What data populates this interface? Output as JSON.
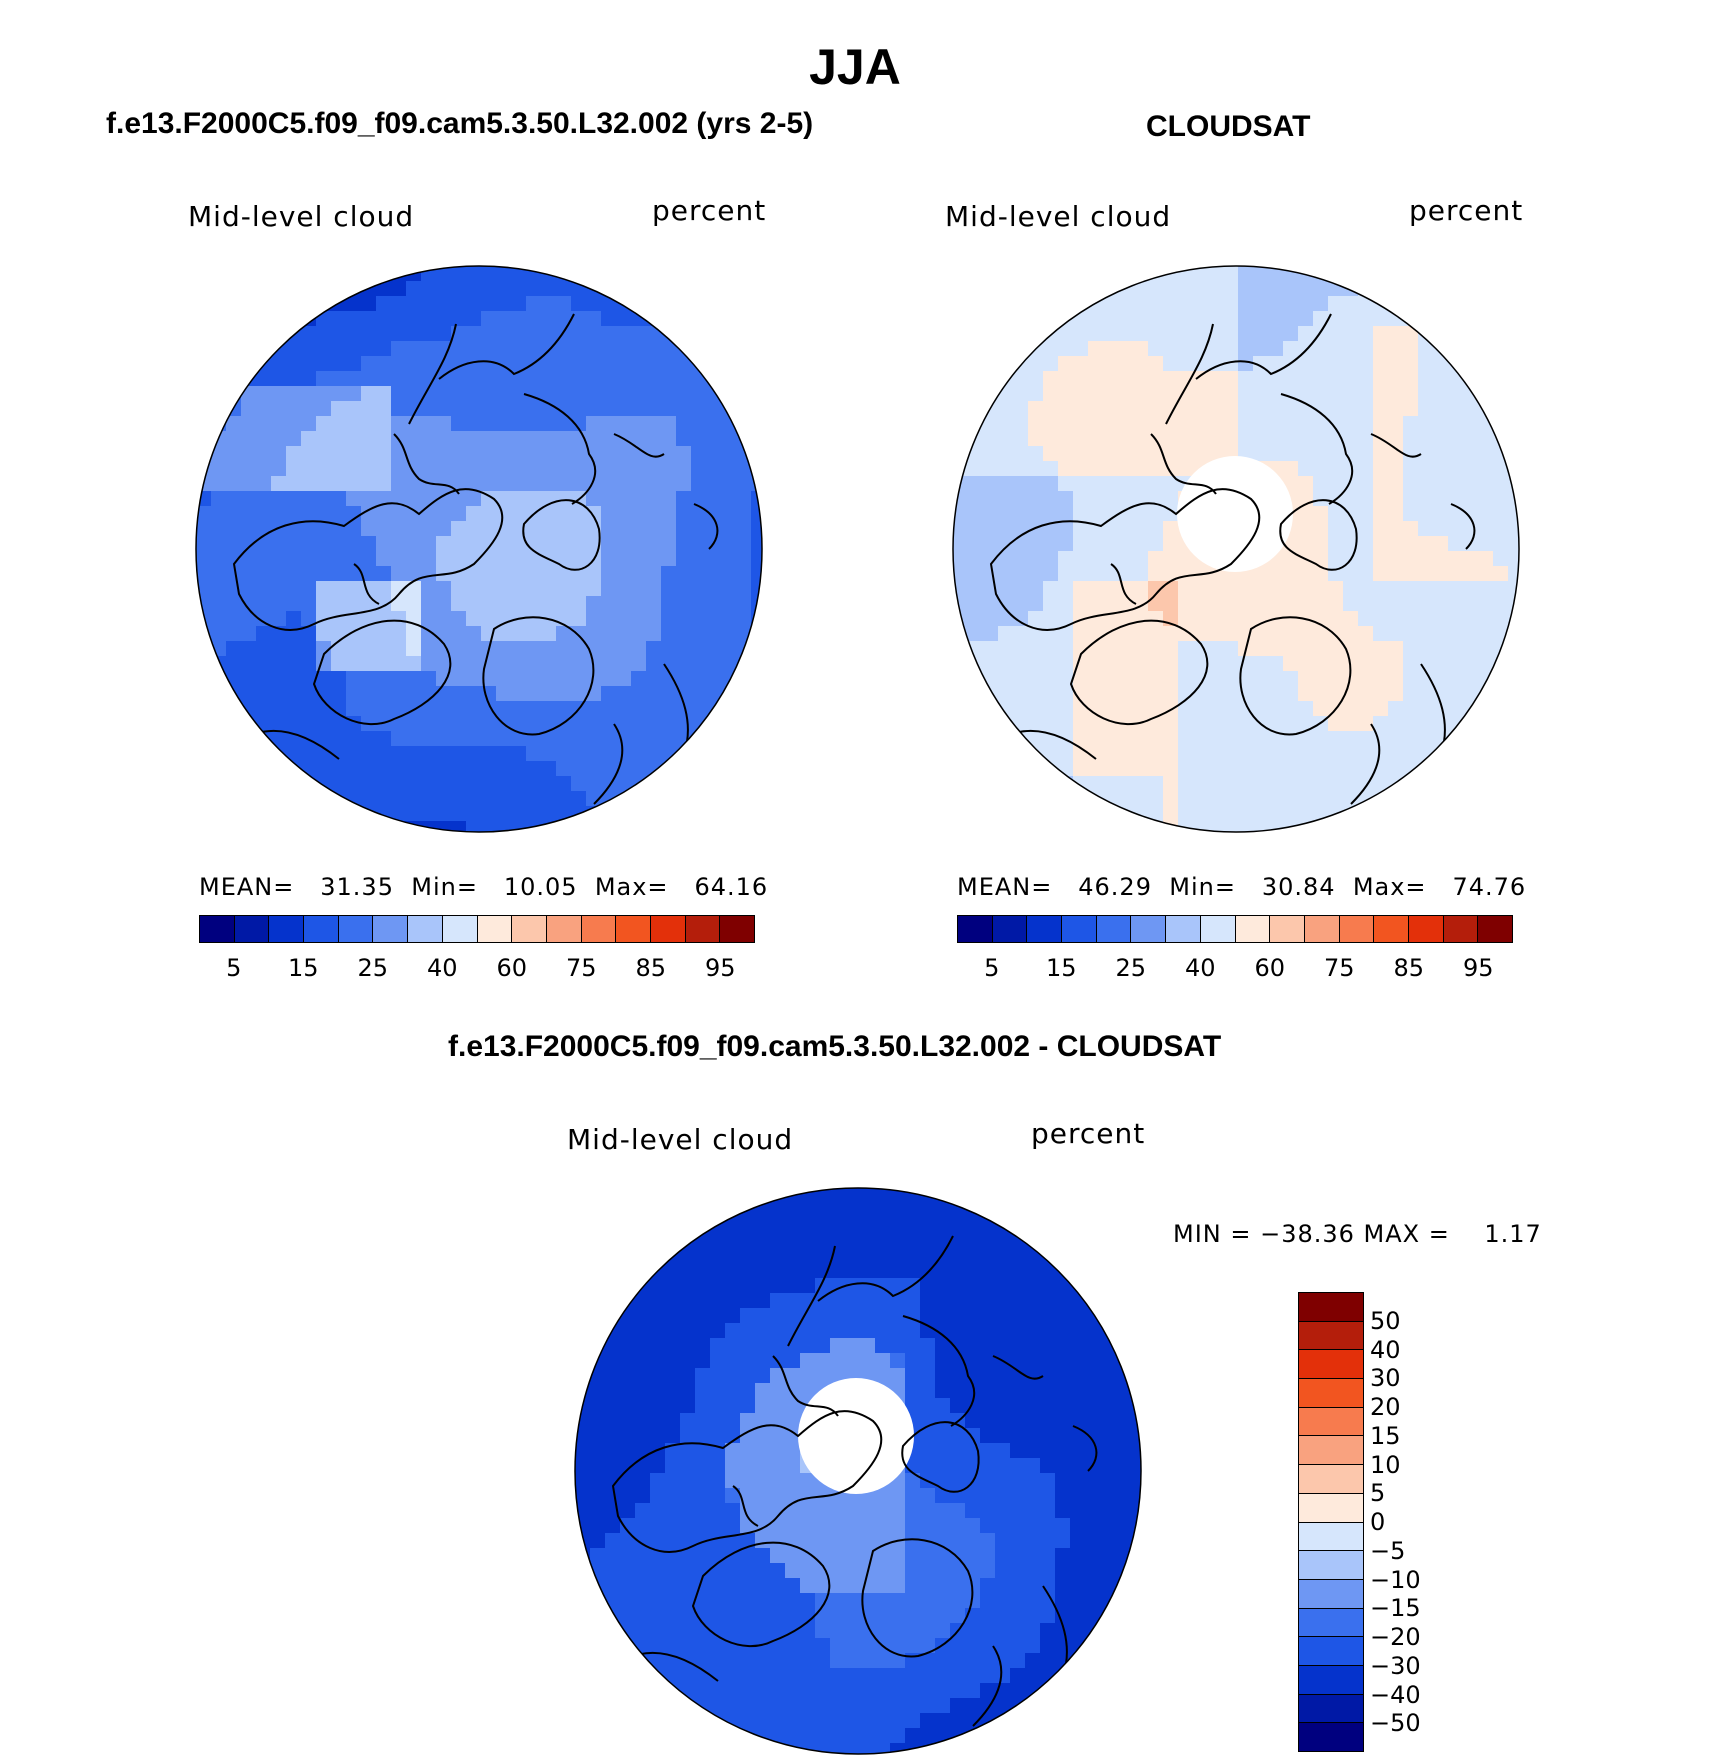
{
  "figure": {
    "title": "JJA"
  },
  "chart_data": [
    {
      "type": "heatmap",
      "projection": "north-polar-stereographic",
      "title": "f.e13.F2000C5.f09_f09.cam5.3.50.L32.002 (yrs 2-5)",
      "variable_label": "Mid-level cloud",
      "units_label": "percent",
      "stats": {
        "mean_label": "MEAN=",
        "mean": "31.35",
        "min_label": "Min=",
        "min": "10.05",
        "max_label": "Max=",
        "max": "64.16"
      },
      "colorbar": {
        "orientation": "horizontal",
        "levels": [
          "5",
          "10",
          "15",
          "20",
          "25",
          "30",
          "40",
          "50",
          "60",
          "70",
          "75",
          "80",
          "85",
          "90",
          "95"
        ],
        "tick_labels": [
          "5",
          "15",
          "25",
          "40",
          "60",
          "75",
          "85",
          "95"
        ]
      },
      "dominant_range": [
        15,
        40
      ]
    },
    {
      "type": "heatmap",
      "projection": "north-polar-stereographic",
      "title": "CLOUDSAT",
      "variable_label": "Mid-level cloud",
      "units_label": "percent",
      "stats": {
        "mean_label": "MEAN=",
        "mean": "46.29",
        "min_label": "Min=",
        "min": "30.84",
        "max_label": "Max=",
        "max": "74.76"
      },
      "colorbar": {
        "orientation": "horizontal",
        "levels": [
          "5",
          "10",
          "15",
          "20",
          "25",
          "30",
          "40",
          "50",
          "60",
          "70",
          "75",
          "80",
          "85",
          "90",
          "95"
        ],
        "tick_labels": [
          "5",
          "15",
          "25",
          "40",
          "60",
          "75",
          "85",
          "95"
        ]
      },
      "dominant_range": [
        40,
        70
      ],
      "missing_data_near_pole": true
    },
    {
      "type": "heatmap",
      "projection": "north-polar-stereographic",
      "title": "f.e13.F2000C5.f09_f09.cam5.3.50.L32.002 - CLOUDSAT",
      "variable_label": "Mid-level cloud",
      "units_label": "percent",
      "stats": {
        "text": "MIN = −38.36 MAX =    1.17"
      },
      "colorbar": {
        "orientation": "vertical",
        "levels": [
          "50",
          "40",
          "30",
          "20",
          "15",
          "10",
          "5",
          "0",
          "−5",
          "−10",
          "−15",
          "−20",
          "−30",
          "−40",
          "−50"
        ]
      },
      "dominant_range": [
        -30,
        -5
      ],
      "missing_data_near_pole": true
    }
  ],
  "palette": {
    "abs": [
      "#00007f",
      "#0019a6",
      "#0533cc",
      "#1e56e6",
      "#3a70ee",
      "#6e97f3",
      "#a9c5fa",
      "#d6e6fc",
      "#feeadc",
      "#fcc7ac",
      "#f9a27f",
      "#f77b4e",
      "#f25520",
      "#e3300a",
      "#b41e0b",
      "#7f0000"
    ],
    "diff": [
      "#7f0000",
      "#b41e0b",
      "#e3300a",
      "#f25520",
      "#f77b4e",
      "#f9a27f",
      "#fcc7ac",
      "#feeadc",
      "#d6e6fc",
      "#a9c5fa",
      "#6e97f3",
      "#3a70ee",
      "#1e56e6",
      "#0533cc",
      "#0019a6",
      "#00007f"
    ]
  }
}
